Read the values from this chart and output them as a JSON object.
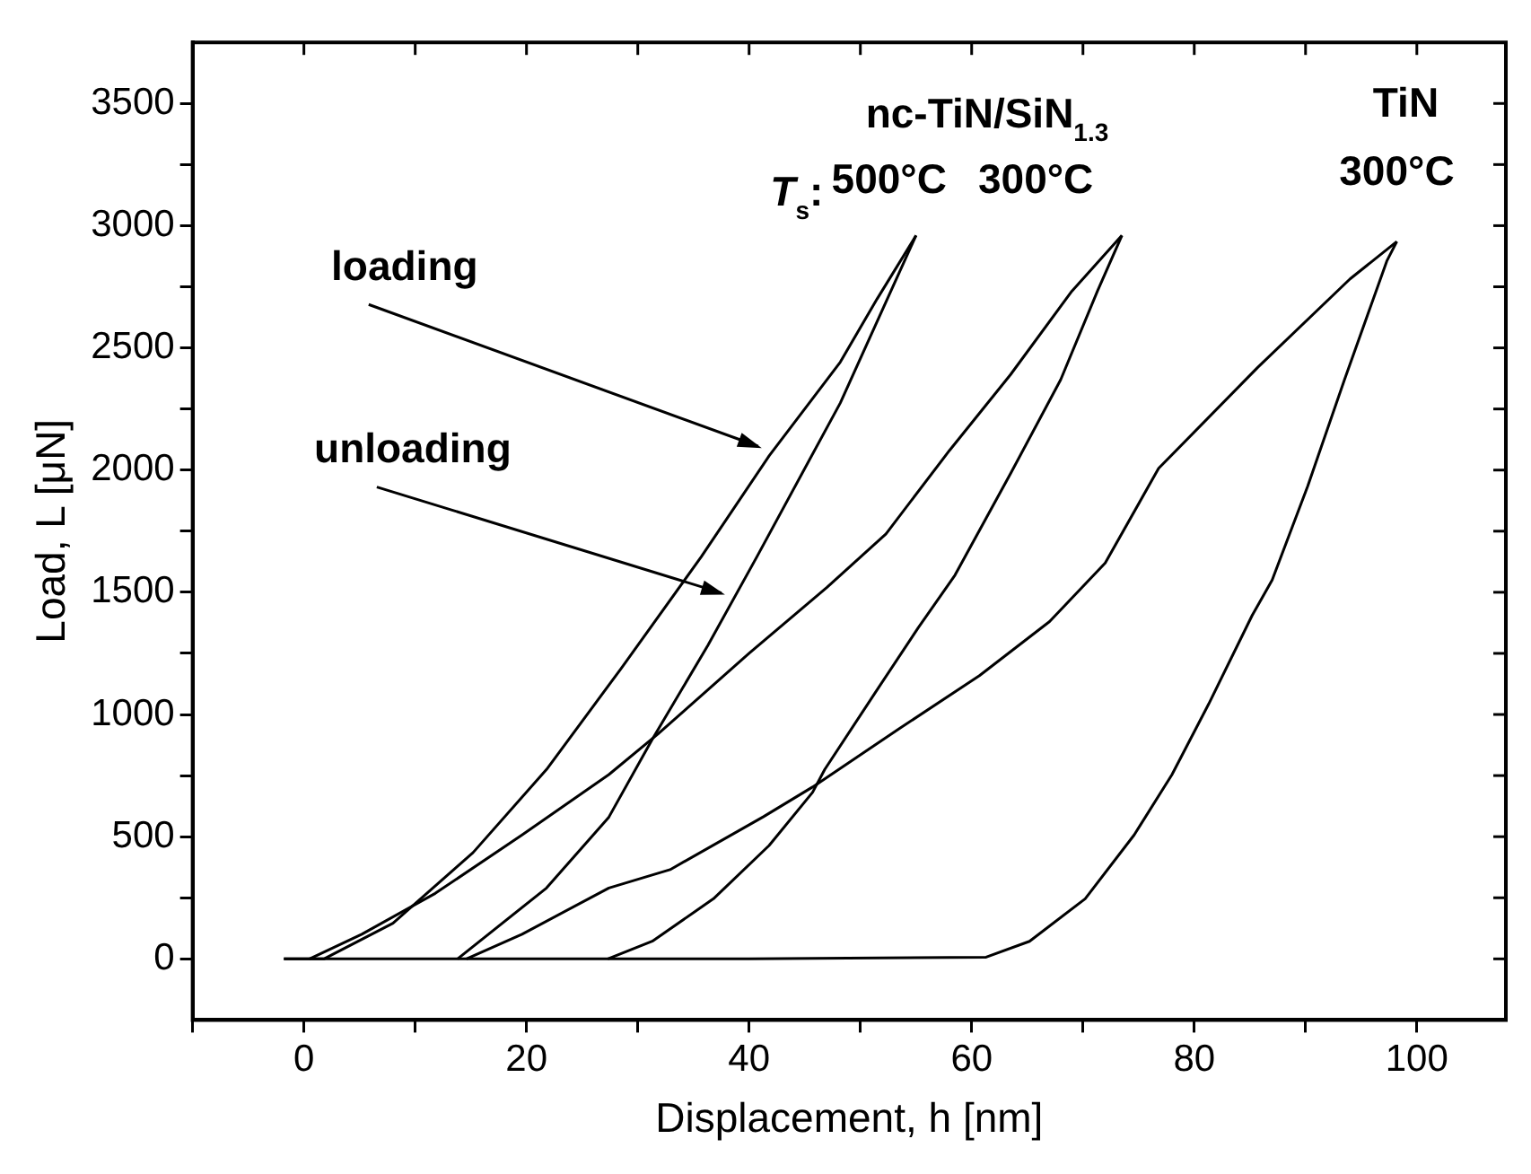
{
  "chart_data": {
    "type": "line",
    "xlabel": "Displacement, h [nm]",
    "ylabel": "Load, L [μN]",
    "xlim": [
      -10,
      108
    ],
    "ylim": [
      -250,
      3750
    ],
    "xticks": [
      {
        "value": -10,
        "label": null
      },
      0,
      {
        "value": 10,
        "label": null
      },
      20,
      {
        "value": 30,
        "label": null
      },
      40,
      {
        "value": 50,
        "label": null
      },
      60,
      {
        "value": 70,
        "label": null
      },
      80,
      {
        "value": 90,
        "label": null
      },
      100
    ],
    "yticks": [
      0,
      {
        "value": 250,
        "label": null
      },
      500,
      {
        "value": 750,
        "label": null
      },
      1000,
      {
        "value": 1250,
        "label": null
      },
      1500,
      {
        "value": 1750,
        "label": null
      },
      2000,
      {
        "value": 2250,
        "label": null
      },
      2500,
      {
        "value": 2750,
        "label": null
      },
      3000,
      {
        "value": 3250,
        "label": null
      },
      3500
    ],
    "grid": false,
    "legend": false,
    "marker": "none",
    "line_style": "solid",
    "series": [
      {
        "color": "#000000",
        "x": [
          -1.8,
          1.8,
          8,
          15.2,
          21.8,
          28.5,
          35.7,
          41.8,
          48.2,
          51.5,
          55
        ],
        "values": [
          0,
          0,
          146,
          435,
          775,
          1188,
          1645,
          2058,
          2442,
          2700,
          2960
        ]
      },
      {
        "color": "#000000",
        "x": [
          55,
          48.2,
          40.7,
          36.3,
          31.3,
          27.4,
          21.8,
          13.8
        ],
        "values": [
          2960,
          2275,
          1645,
          1283,
          898,
          580,
          290,
          0
        ]
      },
      {
        "color": "#000000",
        "x": [
          0.5,
          5.2,
          11.8,
          19.6,
          27.4,
          31.8,
          40,
          47,
          52.3,
          58,
          63.5,
          69,
          73.5
        ],
        "values": [
          0,
          101,
          268,
          507,
          754,
          920,
          1250,
          1520,
          1739,
          2080,
          2391,
          2732,
          2960
        ]
      },
      {
        "color": "#000000",
        "x": [
          73.5,
          71.3,
          68,
          63.5,
          58.5,
          55.2,
          51.3,
          46.8,
          45.7,
          41.8,
          36.8,
          31.3,
          27.3
        ],
        "values": [
          2960,
          2732,
          2370,
          1986,
          1570,
          1355,
          1087,
          775,
          681,
          464,
          246,
          72,
          0
        ]
      },
      {
        "color": "#000000",
        "x": [
          14.6,
          19.6,
          27.4,
          32.9,
          41.3,
          45.7,
          53.5,
          60.7,
          67,
          72,
          76.8,
          85.7,
          94,
          98.2
        ],
        "values": [
          0,
          101,
          290,
          365,
          582,
          703,
          942,
          1159,
          1380,
          1620,
          2007,
          2420,
          2782,
          2935
        ]
      },
      {
        "color": "#000000",
        "x": [
          98.2,
          97.3,
          93.5,
          90.2,
          87,
          85.2,
          81.3,
          78,
          74.6,
          70.2,
          65.2,
          61.3,
          40,
          20,
          -1.8
        ],
        "values": [
          2935,
          2855,
          2370,
          1935,
          1550,
          1405,
          1043,
          754,
          507,
          246,
          72,
          7,
          0,
          0,
          0
        ]
      }
    ],
    "annotations": [
      {
        "text": "loading",
        "x": 41.3,
        "y": 2090
      },
      {
        "text": "unloading",
        "x": 38,
        "y": 1490
      },
      {
        "text": "500°C",
        "x": 55,
        "y": 2960
      },
      {
        "text": "300°C",
        "x": 73.5,
        "y": 2960
      },
      {
        "text": "300°C",
        "x": 98.2,
        "y": 2935
      },
      {
        "text": "TiN",
        "x": 98.2,
        "y": 2935
      },
      "nc-TiN/SiN$_{1.3}$",
      "T$_{s}$:"
    ]
  }
}
